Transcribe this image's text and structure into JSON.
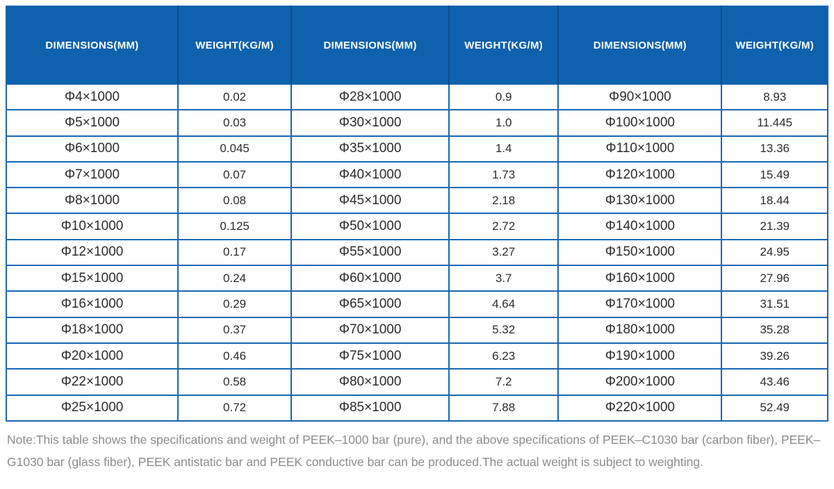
{
  "table": {
    "header_bg_color": "#0e61ad",
    "header_divider_color": "#0b4d90",
    "grid_border_color": "#1767b3",
    "columns": [
      "DIMENSIONS(MM)",
      "WEIGHT(KG/M)",
      "DIMENSIONS(MM)",
      "WEIGHT(KG/M)",
      "DIMENSIONS(MM)",
      "WEIGHT(KG/M)"
    ],
    "rows": [
      [
        "Φ4×1000",
        "0.02",
        "Φ28×1000",
        "0.9",
        "Φ90×1000",
        "8.93"
      ],
      [
        "Φ5×1000",
        "0.03",
        "Φ30×1000",
        "1.0",
        "Φ100×1000",
        "11.445"
      ],
      [
        "Φ6×1000",
        "0.045",
        "Φ35×1000",
        "1.4",
        "Φ110×1000",
        "13.36"
      ],
      [
        "Φ7×1000",
        "0.07",
        "Φ40×1000",
        "1.73",
        "Φ120×1000",
        "15.49"
      ],
      [
        "Φ8×1000",
        "0.08",
        "Φ45×1000",
        "2.18",
        "Φ130×1000",
        "18.44"
      ],
      [
        "Φ10×1000",
        "0.125",
        "Φ50×1000",
        "2.72",
        "Φ140×1000",
        "21.39"
      ],
      [
        "Φ12×1000",
        "0.17",
        "Φ55×1000",
        "3.27",
        "Φ150×1000",
        "24.95"
      ],
      [
        "Φ15×1000",
        "0.24",
        "Φ60×1000",
        "3.7",
        "Φ160×1000",
        "27.96"
      ],
      [
        "Φ16×1000",
        "0.29",
        "Φ65×1000",
        "4.64",
        "Φ170×1000",
        "31.51"
      ],
      [
        "Φ18×1000",
        "0.37",
        "Φ70×1000",
        "5.32",
        "Φ180×1000",
        "35.28"
      ],
      [
        "Φ20×1000",
        "0.46",
        "Φ75×1000",
        "6.23",
        "Φ190×1000",
        "39.26"
      ],
      [
        "Φ22×1000",
        "0.58",
        "Φ80×1000",
        "7.2",
        "Φ200×1000",
        "43.46"
      ],
      [
        "Φ25×1000",
        "0.72",
        "Φ85×1000",
        "7.88",
        "Φ220×1000",
        "52.49"
      ]
    ]
  },
  "note": {
    "text": "Note:This table shows the specifications and weight of PEEK–1000 bar (pure), and the above specifications of PEEK–C1030 bar (carbon fiber), PEEK–G1030 bar (glass fiber), PEEK antistatic bar and PEEK conductive bar can be produced.The actual weight is subject to weighting."
  }
}
